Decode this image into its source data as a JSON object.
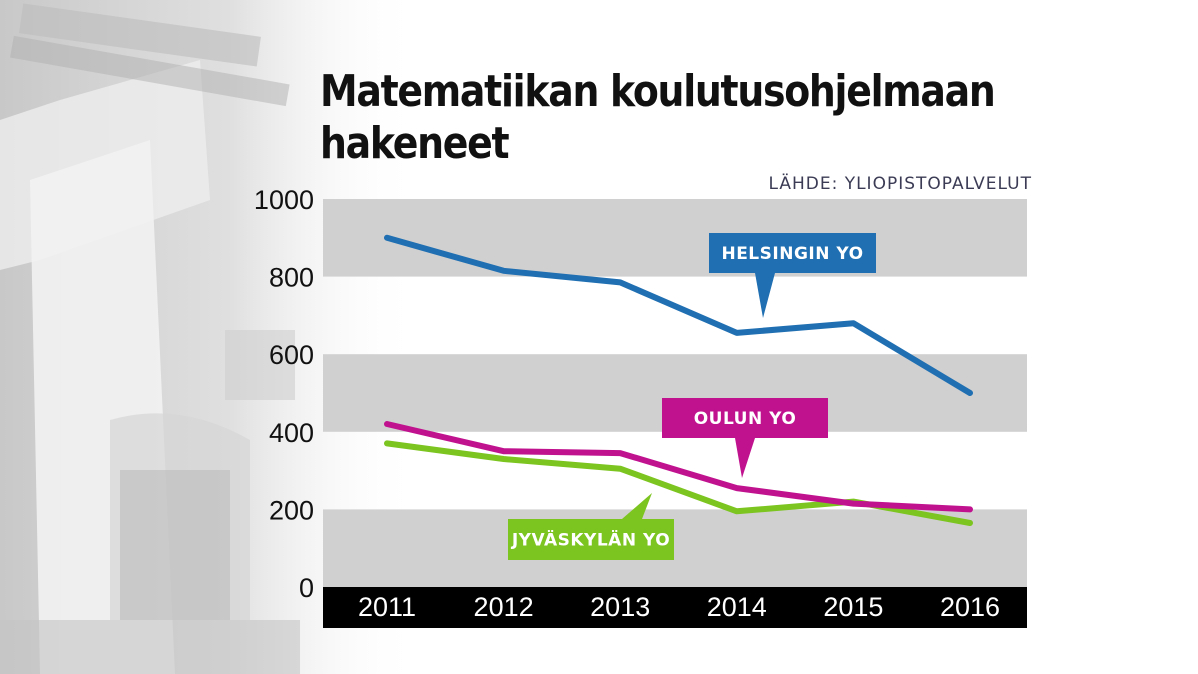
{
  "chart_data": {
    "type": "line",
    "title_lines": [
      "Matematiikan koulutusohjelmaan",
      "hakeneet"
    ],
    "source": "LÄHDE: YLIOPISTOPALVELUT",
    "categories": [
      "2011",
      "2012",
      "2013",
      "2014",
      "2015",
      "2016"
    ],
    "y_ticks": [
      "0",
      "200",
      "400",
      "600",
      "800",
      "1000"
    ],
    "ylim": [
      0,
      1000
    ],
    "grid": "alternating horizontal bands",
    "xlabel": "",
    "ylabel": "",
    "series": [
      {
        "name": "HELSINGIN YO",
        "color": "#1f6fb2",
        "values": [
          900,
          815,
          785,
          655,
          680,
          500
        ]
      },
      {
        "name": "OULUN YO",
        "color": "#c0128f",
        "values": [
          420,
          350,
          345,
          255,
          215,
          200
        ]
      },
      {
        "name": "JYVÄSKYLÄN YO",
        "color": "#7cc41f",
        "values": [
          370,
          330,
          305,
          195,
          220,
          165
        ]
      }
    ]
  }
}
